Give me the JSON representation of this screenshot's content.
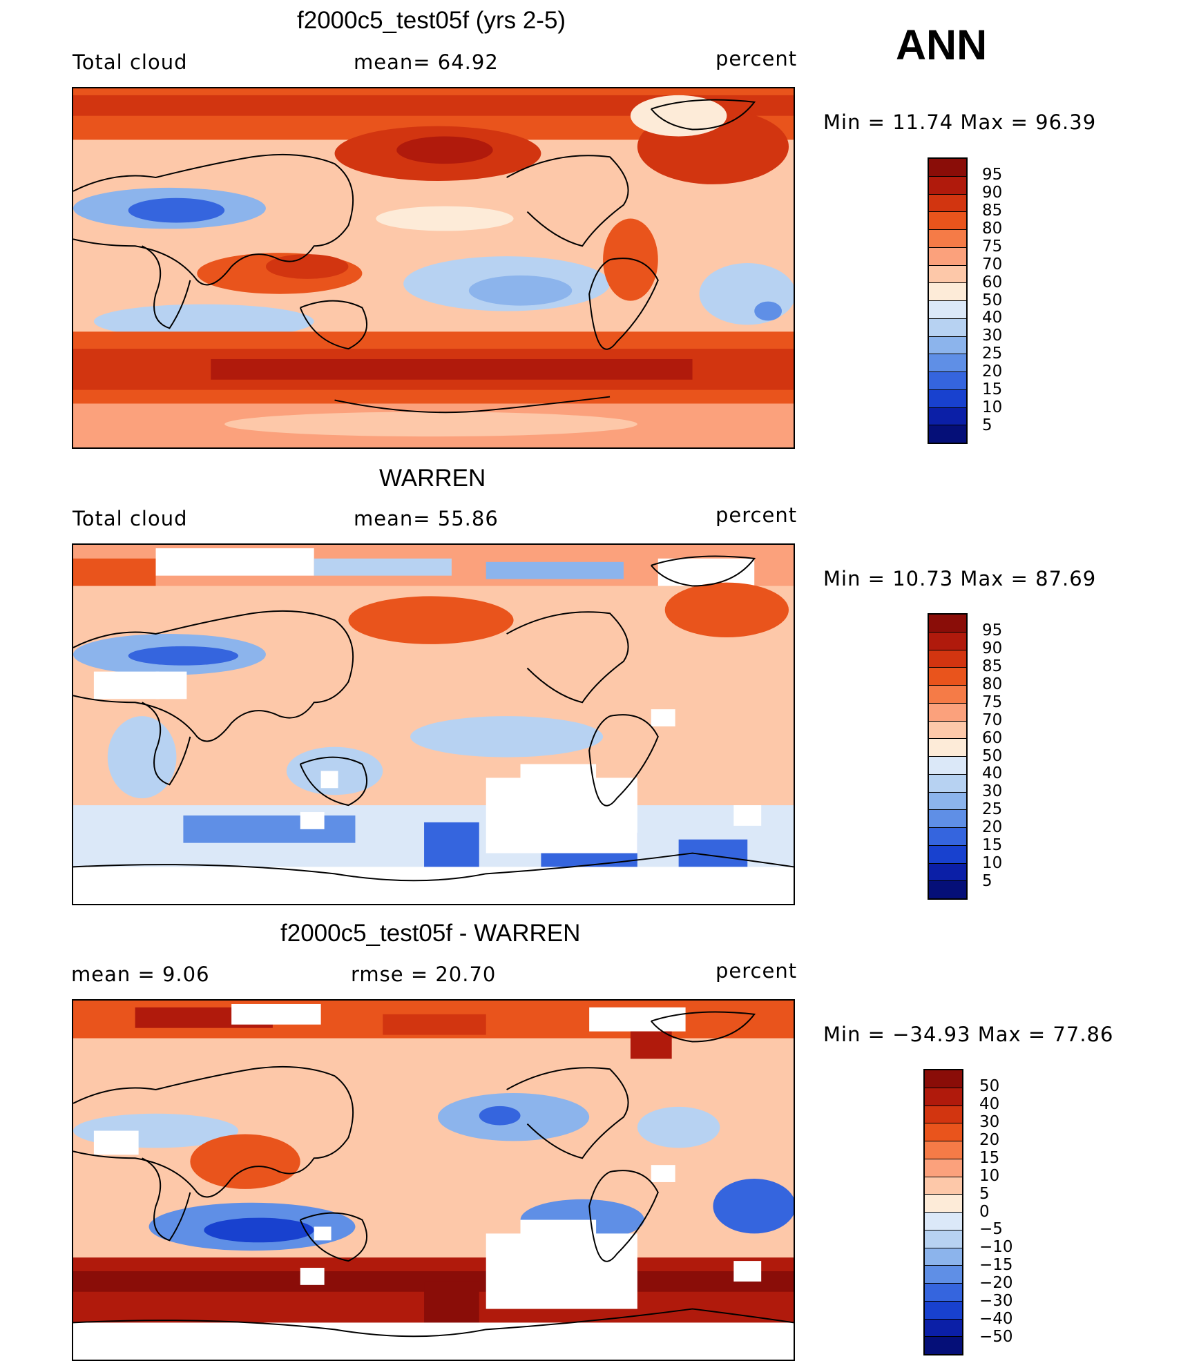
{
  "header": {
    "season": "ANN"
  },
  "units": "percent",
  "panels": [
    {
      "id": "model",
      "title": "f2000c5_test05f (yrs 2-5)",
      "variable": "Total cloud",
      "stat1": "mean=   64.92",
      "stat2": "",
      "minmax": "Min  =    11.74  Max  =    96.39",
      "colorbar": {
        "labels": [
          "95",
          "90",
          "85",
          "80",
          "75",
          "70",
          "60",
          "50",
          "40",
          "30",
          "25",
          "20",
          "15",
          "10",
          "5"
        ],
        "colors": [
          "#8a0d08",
          "#b01a0c",
          "#d23510",
          "#e9541c",
          "#f57b47",
          "#fba17c",
          "#fdc8a9",
          "#fdebd8",
          "#dbe8f8",
          "#b7d2f2",
          "#8cb4ec",
          "#5f8fe6",
          "#3565de",
          "#1841cf",
          "#0b1fa7",
          "#050f78"
        ]
      }
    },
    {
      "id": "obs",
      "title": "WARREN",
      "variable": "Total cloud",
      "stat1": "mean=   55.86",
      "stat2": "",
      "minmax": "Min  =    10.73  Max  =    87.69",
      "colorbar": {
        "labels": [
          "95",
          "90",
          "85",
          "80",
          "75",
          "70",
          "60",
          "50",
          "40",
          "30",
          "25",
          "20",
          "15",
          "10",
          "5"
        ],
        "colors": [
          "#8a0d08",
          "#b01a0c",
          "#d23510",
          "#e9541c",
          "#f57b47",
          "#fba17c",
          "#fdc8a9",
          "#fdebd8",
          "#dbe8f8",
          "#b7d2f2",
          "#8cb4ec",
          "#5f8fe6",
          "#3565de",
          "#1841cf",
          "#0b1fa7",
          "#050f78"
        ]
      }
    },
    {
      "id": "diff",
      "title": "f2000c5_test05f - WARREN",
      "variable": "mean =      9.06",
      "stat1": "rmse  =    20.70",
      "stat2": "",
      "minmax": "Min  = −34.93  Max  =    77.86",
      "colorbar": {
        "labels": [
          "50",
          "40",
          "30",
          "20",
          "15",
          "10",
          "5",
          "0",
          "−5",
          "−10",
          "−15",
          "−20",
          "−30",
          "−40",
          "−50"
        ],
        "colors": [
          "#8a0d08",
          "#b01a0c",
          "#d23510",
          "#e9541c",
          "#f57b47",
          "#fba17c",
          "#fdc8a9",
          "#fdebd8",
          "#dbe8f8",
          "#b7d2f2",
          "#8cb4ec",
          "#5f8fe6",
          "#3565de",
          "#1841cf",
          "#0b1fa7",
          "#050f78"
        ]
      }
    }
  ]
}
